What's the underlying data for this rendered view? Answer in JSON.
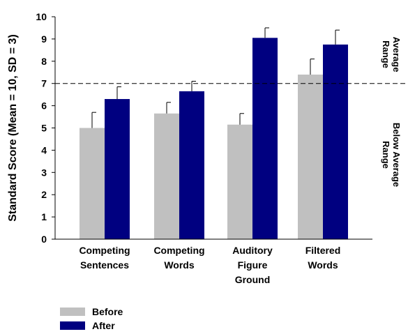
{
  "chart_data": {
    "type": "bar",
    "ylabel": "Standard Score (Mean = 10, SD = 3)",
    "ylim": [
      0,
      10
    ],
    "yticks": [
      "0",
      "1",
      "2",
      "3",
      "4",
      "5",
      "6",
      "7",
      "8",
      "9",
      "10"
    ],
    "categories": [
      [
        "Competing",
        "Sentences"
      ],
      [
        "Competing",
        "Words"
      ],
      [
        "Auditory",
        "Figure",
        "Ground"
      ],
      [
        "Filtered",
        "Words"
      ]
    ],
    "series": [
      {
        "name": "Before",
        "color": "#c0c0c0",
        "values": [
          5.0,
          5.65,
          5.15,
          7.4
        ],
        "errors": [
          0.7,
          0.5,
          0.5,
          0.7
        ]
      },
      {
        "name": "After",
        "color": "#000080",
        "values": [
          6.3,
          6.65,
          9.05,
          8.75
        ],
        "errors": [
          0.55,
          0.45,
          0.45,
          0.65
        ]
      }
    ],
    "reference_line": {
      "y": 7,
      "style": "dashed"
    },
    "range_labels": {
      "upper": [
        "Average",
        "Range"
      ],
      "lower": [
        "Below Average",
        "Range"
      ]
    },
    "legend_position": "bottom-left",
    "grid": false
  }
}
